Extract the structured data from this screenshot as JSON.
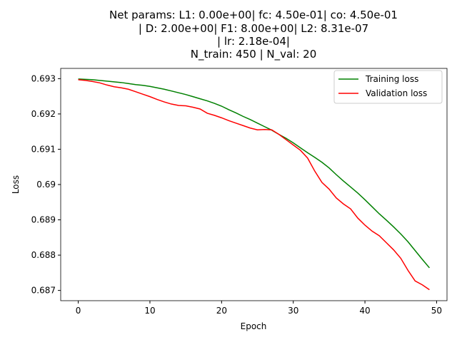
{
  "chart_data": {
    "type": "line",
    "title": [
      "Net params: L1: 0.00e+00| fc: 4.50e-01| co: 4.50e-01",
      "| D: 2.00e+00| F1: 8.00e+00| L2: 8.31e-07",
      "| lr: 2.18e-04|",
      "N_train: 450 | N_val: 20"
    ],
    "xlabel": "Epoch",
    "ylabel": "Loss",
    "x": [
      0,
      1,
      2,
      3,
      4,
      5,
      6,
      7,
      8,
      9,
      10,
      11,
      12,
      13,
      14,
      15,
      16,
      17,
      18,
      19,
      20,
      21,
      22,
      23,
      24,
      25,
      26,
      27,
      28,
      29,
      30,
      31,
      32,
      33,
      34,
      35,
      36,
      37,
      38,
      39,
      40,
      41,
      42,
      43,
      44,
      45,
      46,
      47,
      48,
      49
    ],
    "series": [
      {
        "name": "Training loss",
        "color": "#008000",
        "values": [
          0.69299,
          0.69298,
          0.69297,
          0.69295,
          0.69293,
          0.69291,
          0.69289,
          0.69286,
          0.69283,
          0.69281,
          0.69278,
          0.69274,
          0.6927,
          0.69265,
          0.6926,
          0.69255,
          0.69249,
          0.69243,
          0.69237,
          0.6923,
          0.69222,
          0.69212,
          0.69203,
          0.69193,
          0.69184,
          0.69174,
          0.69164,
          0.69154,
          0.69142,
          0.69131,
          0.69118,
          0.69104,
          0.6909,
          0.69077,
          0.69063,
          0.69047,
          0.69028,
          0.6901,
          0.68993,
          0.68976,
          0.68957,
          0.68937,
          0.68917,
          0.68899,
          0.6888,
          0.6886,
          0.68838,
          0.68813,
          0.68788,
          0.68764
        ]
      },
      {
        "name": "Validation loss",
        "color": "#ff0000",
        "values": [
          0.69297,
          0.69295,
          0.69292,
          0.69288,
          0.69282,
          0.69277,
          0.69274,
          0.6927,
          0.69263,
          0.69256,
          0.69249,
          0.69241,
          0.69234,
          0.69228,
          0.69224,
          0.69223,
          0.69219,
          0.69214,
          0.69202,
          0.69196,
          0.69189,
          0.69181,
          0.69174,
          0.69167,
          0.6916,
          0.69155,
          0.69156,
          0.69155,
          0.69142,
          0.69127,
          0.69112,
          0.69097,
          0.69075,
          0.69038,
          0.69006,
          0.68987,
          0.68962,
          0.68945,
          0.68931,
          0.68905,
          0.68885,
          0.68868,
          0.68855,
          0.68835,
          0.68815,
          0.68791,
          0.68757,
          0.68727,
          0.68716,
          0.68702
        ]
      }
    ],
    "xlim": [
      -2.45,
      51.45
    ],
    "ylim": [
      0.68671,
      0.69329
    ],
    "xticks": [
      0,
      10,
      20,
      30,
      40,
      50
    ],
    "yticks": [
      0.687,
      0.688,
      0.689,
      0.69,
      0.691,
      0.692,
      0.693
    ],
    "legend": "upper right"
  }
}
